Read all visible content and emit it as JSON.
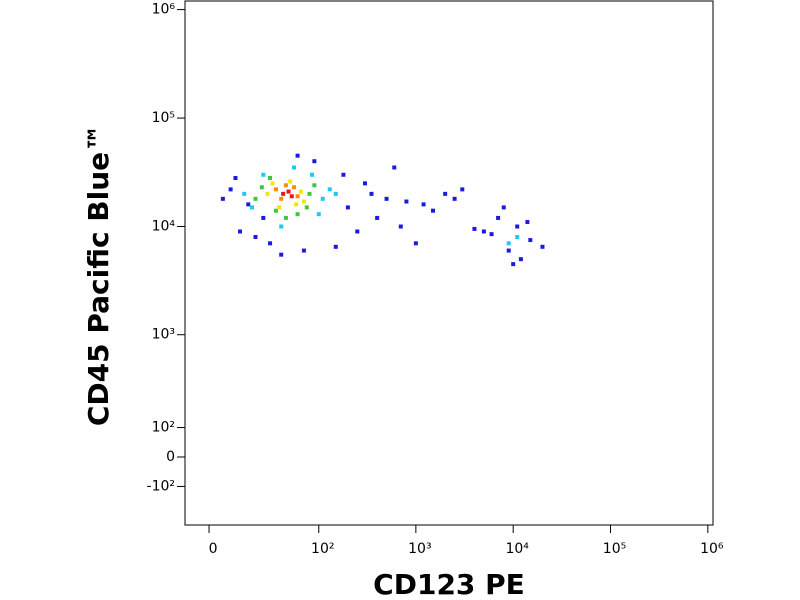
{
  "chart_data": {
    "type": "scatter",
    "x_label": "CD123 PE",
    "y_label": "CD45 Pacific Blue™",
    "xscale": "biexponential",
    "yscale": "biexponential",
    "xlim": [
      -9,
      1130000
    ],
    "ylim": [
      -300,
      1200000
    ],
    "xticks": [
      0,
      {
        "value": 100,
        "label": "10²"
      },
      {
        "value": 1000,
        "label": "10³"
      },
      {
        "value": 10000,
        "label": "10⁴"
      },
      {
        "value": 100000,
        "label": "10⁵"
      },
      {
        "value": 1000000,
        "label": "10⁶"
      }
    ],
    "yticks": [
      {
        "value": -100,
        "label": "-10²"
      },
      0,
      {
        "value": 100,
        "label": "10²"
      },
      {
        "value": 1000,
        "label": "10³"
      },
      {
        "value": 10000,
        "label": "10⁴"
      },
      {
        "value": 100000,
        "label": "10⁵"
      },
      {
        "value": 1000000,
        "label": "10⁶"
      }
    ],
    "series": [
      {
        "color": "#1a1adc",
        "x": [
          5,
          8,
          12,
          200,
          300,
          500,
          800,
          1200,
          2000,
          3000,
          250,
          400,
          700,
          1500,
          180,
          90,
          60,
          30,
          20,
          5000,
          7000,
          9000,
          12000,
          15000,
          20000,
          8000,
          10000,
          14000,
          6000,
          11000,
          600,
          350,
          150,
          70,
          40,
          25,
          1000,
          2500,
          4000,
          16,
          10
        ],
        "values": [
          18000,
          22000,
          9000,
          15000,
          25000,
          18000,
          17000,
          16000,
          20000,
          22000,
          9000,
          12000,
          10000,
          14000,
          30000,
          40000,
          45000,
          7000,
          8000,
          9000,
          12000,
          6000,
          5000,
          7500,
          6500,
          15000,
          4500,
          11000,
          8500,
          10000,
          35000,
          20000,
          6500,
          6000,
          5500,
          12000,
          7000,
          18000,
          9500,
          16000,
          28000
        ]
      },
      {
        "color": "#1ec8f0",
        "x": [
          14,
          18,
          110,
          130,
          25,
          85,
          100,
          55,
          40,
          150,
          9000,
          11000
        ],
        "values": [
          20000,
          15000,
          18000,
          22000,
          30000,
          30000,
          13000,
          35000,
          10000,
          20000,
          7000,
          8000
        ]
      },
      {
        "color": "#3cc83c",
        "x": [
          20,
          24,
          80,
          90,
          30,
          60,
          45,
          75,
          35
        ],
        "values": [
          18000,
          23000,
          20000,
          24000,
          28000,
          13000,
          12000,
          15000,
          14000
        ]
      },
      {
        "color": "#f0e800",
        "x": [
          28,
          32,
          65,
          70,
          38,
          50,
          58
        ],
        "values": [
          20000,
          25000,
          21000,
          17000,
          15000,
          26000,
          16000
        ]
      },
      {
        "color": "#ff8c00",
        "x": [
          35,
          40,
          55,
          60,
          45
        ],
        "values": [
          22000,
          18000,
          23000,
          19000,
          24000
        ]
      },
      {
        "color": "#e8141c",
        "x": [
          42,
          48,
          52
        ],
        "values": [
          20000,
          21000,
          19000
        ]
      }
    ]
  }
}
